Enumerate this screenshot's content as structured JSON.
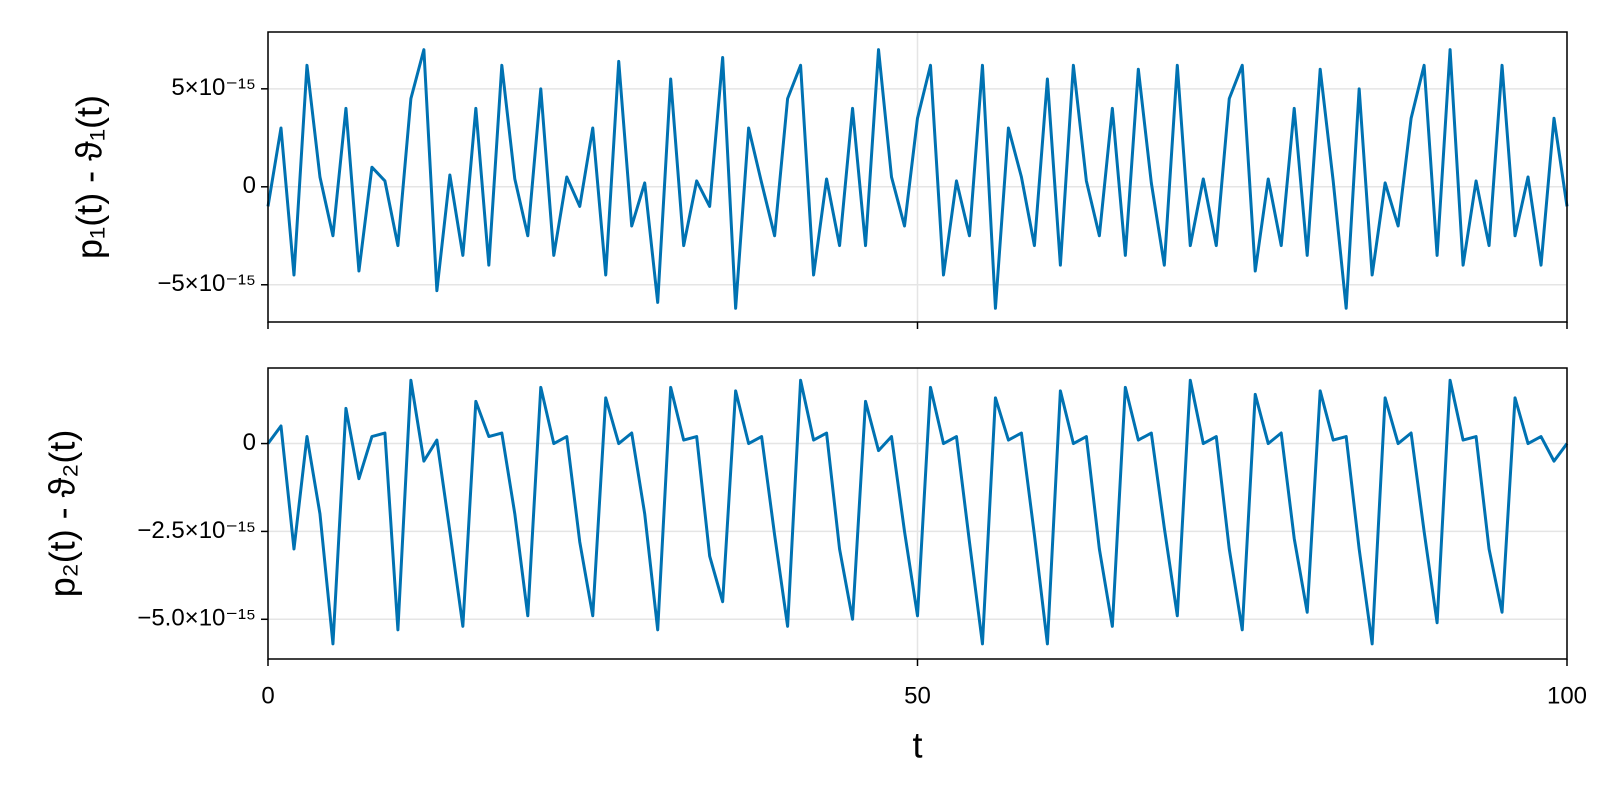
{
  "chart_data": [
    {
      "type": "line",
      "ylabel": "p₁(t) - ϑ₁(t)",
      "color": "#0072b2",
      "grid": true,
      "xlim": [
        0,
        100
      ],
      "ylim": [
        -6.9e-15,
        7.9e-15
      ],
      "yticks": [
        {
          "value": -5e-15,
          "label": "−5×10⁻¹⁵"
        },
        0,
        {
          "value": 5e-15,
          "label": "5×10⁻¹⁵"
        }
      ],
      "x": [
        0,
        1,
        2,
        3,
        4,
        5,
        6,
        7,
        8,
        9,
        10,
        11,
        12,
        13,
        14,
        15,
        16,
        17,
        18,
        19,
        20,
        21,
        22,
        23,
        24,
        25,
        26,
        27,
        28,
        29,
        30,
        31,
        32,
        33,
        34,
        35,
        36,
        37,
        38,
        39,
        40,
        41,
        42,
        43,
        44,
        45,
        46,
        47,
        48,
        49,
        50,
        51,
        52,
        53,
        54,
        55,
        56,
        57,
        58,
        59,
        60,
        61,
        62,
        63,
        64,
        65,
        66,
        67,
        68,
        69,
        70,
        71,
        72,
        73,
        74,
        75,
        76,
        77,
        78,
        79,
        80,
        81,
        82,
        83,
        84,
        85,
        86,
        87,
        88,
        89,
        90,
        91,
        92,
        93,
        94,
        95,
        96,
        97,
        98,
        99,
        100
      ],
      "values": [
        -1e-15,
        3e-15,
        -4.5e-15,
        6.2e-15,
        5e-16,
        -2.5e-15,
        4e-15,
        -4.3e-15,
        1e-15,
        3e-16,
        -3e-15,
        4.5e-15,
        7e-15,
        -5.3e-15,
        6e-16,
        -3.5e-15,
        4e-15,
        -4e-15,
        6.2e-15,
        4e-16,
        -2.5e-15,
        5e-15,
        -3.5e-15,
        5e-16,
        -1e-15,
        3e-15,
        -4.5e-15,
        6.4e-15,
        -2e-15,
        2e-16,
        -5.9e-15,
        5.5e-15,
        -3e-15,
        3e-16,
        -1e-15,
        6.6e-15,
        -6.2e-15,
        3e-15,
        2e-16,
        -2.5e-15,
        4.5e-15,
        6.2e-15,
        -4.5e-15,
        4e-16,
        -3e-15,
        4e-15,
        -3e-15,
        7e-15,
        5e-16,
        -2e-15,
        3.5e-15,
        6.2e-15,
        -4.5e-15,
        3e-16,
        -2.5e-15,
        6.2e-15,
        -6.2e-15,
        3e-15,
        5e-16,
        -3e-15,
        5.5e-15,
        -4e-15,
        6.2e-15,
        3e-16,
        -2.5e-15,
        4e-15,
        -3.5e-15,
        6e-15,
        2e-16,
        -4e-15,
        6.2e-15,
        -3e-15,
        4e-16,
        -3e-15,
        4.5e-15,
        6.2e-15,
        -4.3e-15,
        4e-16,
        -3e-15,
        4e-15,
        -3.5e-15,
        6e-15,
        3e-16,
        -6.2e-15,
        5e-15,
        -4.5e-15,
        2e-16,
        -2e-15,
        3.5e-15,
        6.2e-15,
        -3.5e-15,
        7e-15,
        -4e-15,
        3e-16,
        -3e-15,
        6.2e-15,
        -2.5e-15,
        5e-16,
        -4e-15,
        3.5e-15,
        -1e-15
      ]
    },
    {
      "type": "line",
      "ylabel": "p₂(t) - ϑ₂(t)",
      "xlabel": "t",
      "color": "#0072b2",
      "grid": true,
      "xlim": [
        0,
        100
      ],
      "xticks": [
        0,
        50,
        100
      ],
      "ylim": [
        -6.13e-15,
        2.15e-15
      ],
      "yticks": [
        {
          "value": -5e-15,
          "label": "−5.0×10⁻¹⁵"
        },
        {
          "value": -2.5e-15,
          "label": "−2.5×10⁻¹⁵"
        },
        0
      ],
      "x": [
        0,
        1,
        2,
        3,
        4,
        5,
        6,
        7,
        8,
        9,
        10,
        11,
        12,
        13,
        14,
        15,
        16,
        17,
        18,
        19,
        20,
        21,
        22,
        23,
        24,
        25,
        26,
        27,
        28,
        29,
        30,
        31,
        32,
        33,
        34,
        35,
        36,
        37,
        38,
        39,
        40,
        41,
        42,
        43,
        44,
        45,
        46,
        47,
        48,
        49,
        50,
        51,
        52,
        53,
        54,
        55,
        56,
        57,
        58,
        59,
        60,
        61,
        62,
        63,
        64,
        65,
        66,
        67,
        68,
        69,
        70,
        71,
        72,
        73,
        74,
        75,
        76,
        77,
        78,
        79,
        80,
        81,
        82,
        83,
        84,
        85,
        86,
        87,
        88,
        89,
        90,
        91,
        92,
        93,
        94,
        95,
        96,
        97,
        98,
        99,
        100
      ],
      "values": [
        0,
        5e-16,
        -3e-15,
        2e-16,
        -2e-15,
        -5.7e-15,
        1e-15,
        -1e-15,
        2e-16,
        3e-16,
        -5.3e-15,
        1.8e-15,
        -5e-16,
        1e-16,
        -2.5e-15,
        -5.2e-15,
        1.2e-15,
        2e-16,
        3e-16,
        -2e-15,
        -4.9e-15,
        1.6e-15,
        0,
        2e-16,
        -2.8e-15,
        -4.9e-15,
        1.3e-15,
        0,
        3e-16,
        -2e-15,
        -5.3e-15,
        1.6e-15,
        1e-16,
        2e-16,
        -3.2e-15,
        -4.5e-15,
        1.5e-15,
        0,
        2e-16,
        -2.6e-15,
        -5.2e-15,
        1.8e-15,
        1e-16,
        3e-16,
        -3e-15,
        -5e-15,
        1.2e-15,
        -2e-16,
        2e-16,
        -2.5e-15,
        -4.9e-15,
        1.6e-15,
        0,
        2e-16,
        -2.8e-15,
        -5.7e-15,
        1.3e-15,
        1e-16,
        3e-16,
        -2.6e-15,
        -5.7e-15,
        1.5e-15,
        0,
        2e-16,
        -3e-15,
        -5.2e-15,
        1.6e-15,
        1e-16,
        3e-16,
        -2.4e-15,
        -4.9e-15,
        1.8e-15,
        0,
        2e-16,
        -3e-15,
        -5.3e-15,
        1.4e-15,
        0,
        3e-16,
        -2.7e-15,
        -4.8e-15,
        1.5e-15,
        1e-16,
        2e-16,
        -3e-15,
        -5.7e-15,
        1.3e-15,
        0,
        3e-16,
        -2.5e-15,
        -5.1e-15,
        1.8e-15,
        1e-16,
        2e-16,
        -3e-15,
        -4.8e-15,
        1.3e-15,
        0,
        2e-16,
        -5e-16,
        0
      ]
    }
  ]
}
